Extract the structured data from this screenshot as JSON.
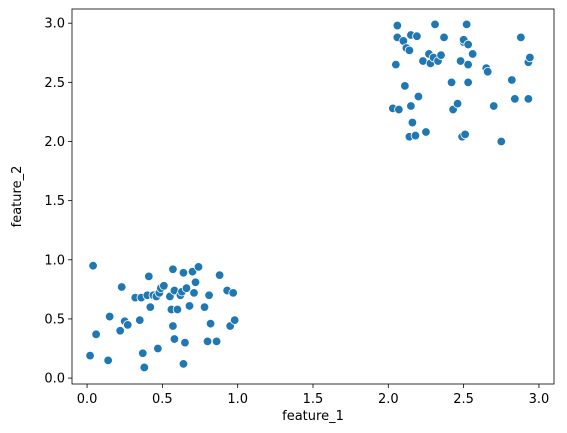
{
  "chart_data": {
    "type": "scatter",
    "title": "",
    "xlabel": "feature_1",
    "ylabel": "feature_2",
    "xlim": [
      -0.1,
      3.1
    ],
    "ylim": [
      -0.05,
      3.12
    ],
    "xticks": [
      0.0,
      0.5,
      1.0,
      1.5,
      2.0,
      2.5,
      3.0
    ],
    "xtick_labels": [
      "0.0",
      "0.5",
      "1.0",
      "1.5",
      "2.0",
      "2.5",
      "3.0"
    ],
    "yticks": [
      0.0,
      0.5,
      1.0,
      1.5,
      2.0,
      2.5,
      3.0
    ],
    "ytick_labels": [
      "0.0",
      "0.5",
      "1.0",
      "1.5",
      "2.0",
      "2.5",
      "3.0"
    ],
    "grid": false,
    "marker_color": "#1f77b4",
    "series": [
      {
        "points": [
          [
            0.04,
            0.95
          ],
          [
            0.02,
            0.19
          ],
          [
            0.06,
            0.37
          ],
          [
            0.15,
            0.52
          ],
          [
            0.14,
            0.15
          ],
          [
            0.23,
            0.77
          ],
          [
            0.22,
            0.4
          ],
          [
            0.25,
            0.48
          ],
          [
            0.27,
            0.45
          ],
          [
            0.32,
            0.68
          ],
          [
            0.35,
            0.49
          ],
          [
            0.36,
            0.68
          ],
          [
            0.37,
            0.21
          ],
          [
            0.38,
            0.09
          ],
          [
            0.4,
            0.7
          ],
          [
            0.41,
            0.86
          ],
          [
            0.42,
            0.6
          ],
          [
            0.44,
            0.7
          ],
          [
            0.46,
            0.69
          ],
          [
            0.47,
            0.25
          ],
          [
            0.48,
            0.72
          ],
          [
            0.49,
            0.76
          ],
          [
            0.51,
            0.78
          ],
          [
            0.55,
            0.69
          ],
          [
            0.56,
            0.58
          ],
          [
            0.57,
            0.92
          ],
          [
            0.57,
            0.44
          ],
          [
            0.58,
            0.74
          ],
          [
            0.58,
            0.33
          ],
          [
            0.6,
            0.58
          ],
          [
            0.62,
            0.7
          ],
          [
            0.63,
            0.73
          ],
          [
            0.64,
            0.89
          ],
          [
            0.64,
            0.12
          ],
          [
            0.65,
            0.3
          ],
          [
            0.66,
            0.76
          ],
          [
            0.68,
            0.61
          ],
          [
            0.7,
            0.9
          ],
          [
            0.71,
            0.72
          ],
          [
            0.72,
            0.81
          ],
          [
            0.74,
            0.94
          ],
          [
            0.78,
            0.6
          ],
          [
            0.8,
            0.31
          ],
          [
            0.81,
            0.7
          ],
          [
            0.82,
            0.46
          ],
          [
            0.86,
            0.31
          ],
          [
            0.88,
            0.87
          ],
          [
            0.93,
            0.74
          ],
          [
            0.95,
            0.44
          ],
          [
            0.97,
            0.72
          ],
          [
            0.98,
            0.49
          ],
          [
            2.03,
            2.28
          ],
          [
            2.05,
            2.65
          ],
          [
            2.06,
            2.98
          ],
          [
            2.06,
            2.88
          ],
          [
            2.07,
            2.27
          ],
          [
            2.1,
            2.85
          ],
          [
            2.11,
            2.47
          ],
          [
            2.12,
            2.79
          ],
          [
            2.14,
            2.77
          ],
          [
            2.14,
            2.04
          ],
          [
            2.15,
            2.3
          ],
          [
            2.15,
            2.9
          ],
          [
            2.16,
            2.16
          ],
          [
            2.18,
            2.05
          ],
          [
            2.19,
            2.89
          ],
          [
            2.2,
            2.38
          ],
          [
            2.23,
            2.68
          ],
          [
            2.25,
            2.08
          ],
          [
            2.27,
            2.74
          ],
          [
            2.28,
            2.66
          ],
          [
            2.3,
            2.71
          ],
          [
            2.31,
            2.99
          ],
          [
            2.33,
            2.68
          ],
          [
            2.35,
            2.73
          ],
          [
            2.37,
            2.88
          ],
          [
            2.42,
            2.5
          ],
          [
            2.43,
            2.27
          ],
          [
            2.46,
            2.32
          ],
          [
            2.48,
            2.68
          ],
          [
            2.49,
            2.04
          ],
          [
            2.5,
            2.84
          ],
          [
            2.5,
            2.86
          ],
          [
            2.51,
            2.06
          ],
          [
            2.52,
            2.99
          ],
          [
            2.53,
            2.5
          ],
          [
            2.53,
            2.82
          ],
          [
            2.53,
            2.65
          ],
          [
            2.56,
            2.74
          ],
          [
            2.65,
            2.62
          ],
          [
            2.66,
            2.59
          ],
          [
            2.7,
            2.3
          ],
          [
            2.75,
            2.0
          ],
          [
            2.82,
            2.52
          ],
          [
            2.84,
            2.36
          ],
          [
            2.88,
            2.88
          ],
          [
            2.93,
            2.67
          ],
          [
            2.93,
            2.36
          ],
          [
            2.94,
            2.71
          ]
        ]
      }
    ]
  }
}
